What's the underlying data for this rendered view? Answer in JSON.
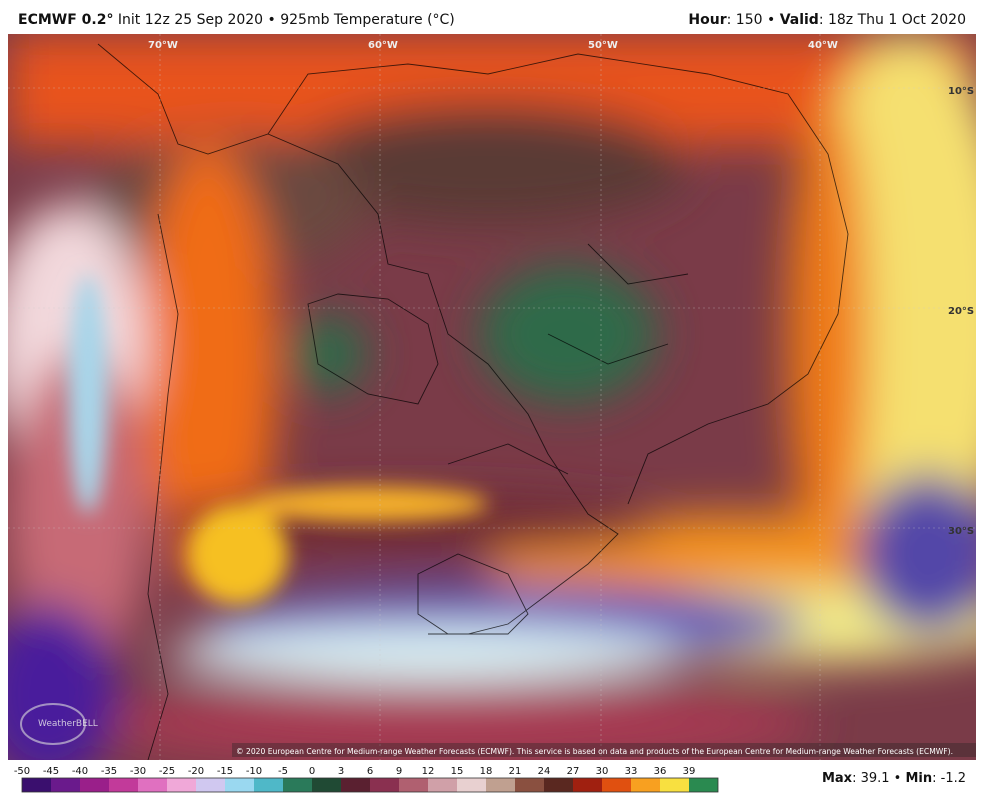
{
  "header": {
    "title": "ECMWF 0.2°",
    "subtitle": "Init 12z 25 Sep 2020 • 925mb Temperature (°C)",
    "right": [
      "Hour",
      ": 150 • ",
      "Valid",
      ": 18z Thu 1 Oct 2020"
    ]
  },
  "map": {
    "lon_labels": [
      "70°W",
      "60°W",
      "50°W",
      "40°W"
    ],
    "lat_labels": [
      "10°S",
      "20°S",
      "30°S"
    ],
    "logo": "WeatherBELL",
    "copyright": "© 2020 European Centre for Medium-range Weather Forecasts (ECMWF). This service is based on data and products of the European Centre for Medium-range Weather Forecasts (ECMWF)."
  },
  "colorbar": {
    "ticks": [
      "-50",
      "-45",
      "-40",
      "-35",
      "-30",
      "-25",
      "-20",
      "-15",
      "-10",
      "-5",
      "0",
      "3",
      "6",
      "9",
      "12",
      "15",
      "18",
      "21",
      "24",
      "27",
      "30",
      "33",
      "36",
      "39"
    ]
  },
  "footer": [
    "Max",
    ": 39.1 • ",
    "Min",
    ": -1.2"
  ]
}
